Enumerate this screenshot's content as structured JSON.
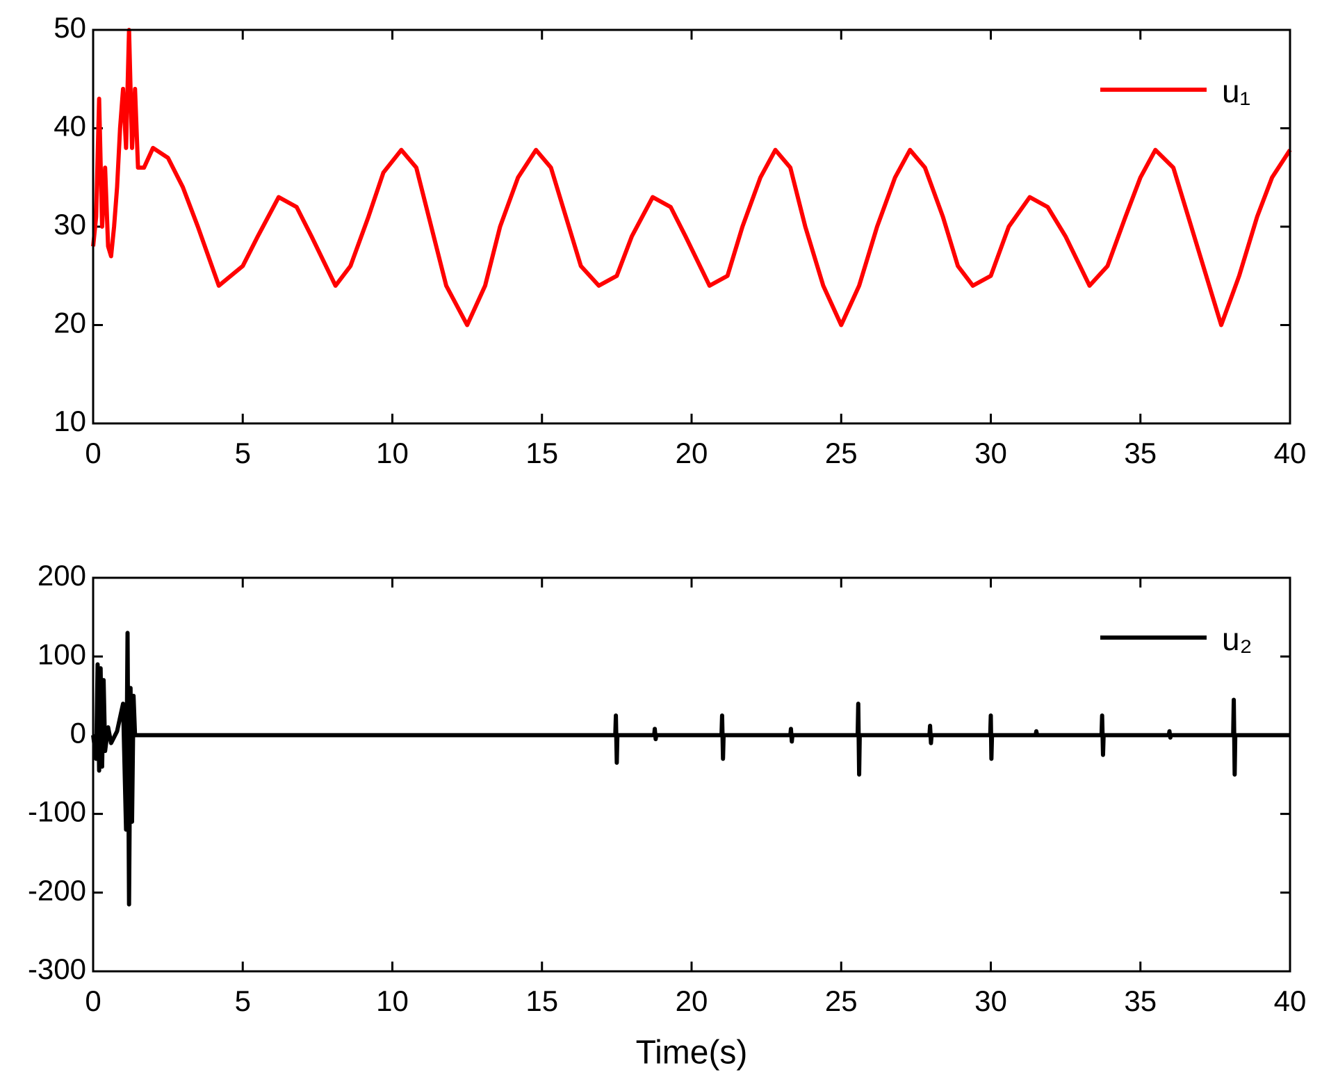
{
  "chart_data": [
    {
      "type": "line",
      "x": [
        0,
        0.1,
        0.2,
        0.3,
        0.4,
        0.5,
        0.6,
        0.7,
        0.8,
        0.9,
        1.0,
        1.1,
        1.2,
        1.3,
        1.4,
        1.5,
        1.7,
        2.0,
        2.5,
        3.0,
        3.5,
        4.2,
        5.0,
        5.5,
        6.2,
        6.8,
        7.3,
        8.1,
        8.6,
        9.2,
        9.7,
        10.3,
        10.8,
        11.3,
        11.8,
        12.5,
        13.1,
        13.6,
        14.2,
        14.8,
        15.3,
        15.8,
        16.3,
        16.9,
        17.5,
        18.0,
        18.7,
        19.3,
        19.8,
        20.6,
        21.2,
        21.7,
        22.3,
        22.8,
        23.3,
        23.8,
        24.4,
        25.0,
        25.6,
        26.2,
        26.8,
        27.3,
        27.8,
        28.4,
        28.9,
        29.4,
        30.0,
        30.6,
        31.3,
        31.9,
        32.5,
        33.3,
        33.9,
        34.5,
        35.0,
        35.5,
        36.1,
        36.6,
        37.1,
        37.7,
        38.3,
        38.9,
        39.4,
        40
      ],
      "series": [
        {
          "name": "u₁",
          "color": "#ff0000",
          "values": [
            28,
            31,
            43,
            30,
            36,
            28,
            27,
            30,
            34,
            40,
            44,
            38,
            50,
            38,
            44,
            36,
            36,
            38,
            37,
            34,
            30,
            24,
            26,
            29,
            33,
            32,
            29,
            24,
            26,
            31,
            35.5,
            37.8,
            36,
            30,
            24,
            20,
            24,
            30,
            35,
            37.8,
            36,
            31,
            26,
            24,
            25,
            29,
            33,
            32,
            29,
            24,
            25,
            30,
            35,
            37.8,
            36,
            30,
            24,
            20,
            24,
            30,
            35,
            37.8,
            36,
            31,
            26,
            24,
            25,
            30,
            33,
            32,
            29,
            24,
            26,
            31,
            35,
            37.8,
            36,
            31,
            26,
            20,
            25,
            31,
            35,
            37.8
          ]
        }
      ],
      "xlim": [
        0,
        40
      ],
      "xticks": [
        0,
        5,
        10,
        15,
        20,
        25,
        30,
        35,
        40
      ],
      "ylim": [
        10,
        50
      ],
      "yticks": [
        10,
        20,
        30,
        40,
        50
      ],
      "legend": "upper right"
    },
    {
      "type": "line",
      "x_label": "Time(s)",
      "x": [
        0,
        0.1,
        0.15,
        0.2,
        0.25,
        0.3,
        0.35,
        0.4,
        0.5,
        0.6,
        0.8,
        1.0,
        1.1,
        1.15,
        1.2,
        1.25,
        1.3,
        1.35,
        1.4,
        4,
        17.45,
        17.47,
        17.5,
        17.52,
        18.75,
        18.77,
        18.8,
        18.82,
        21,
        21.02,
        21.05,
        21.07,
        23.3,
        23.32,
        23.35,
        23.37,
        25.55,
        25.57,
        25.6,
        25.62,
        27.95,
        27.97,
        28,
        28.02,
        29.98,
        30,
        30.02,
        30.04,
        31.5,
        31.52,
        31.55,
        33.7,
        33.72,
        33.75,
        33.77,
        35.95,
        35.97,
        36,
        36.02,
        38.1,
        38.12,
        38.15,
        38.17,
        40
      ],
      "series": [
        {
          "name": "u₂",
          "color": "#000000",
          "values": [
            0,
            -30,
            90,
            -45,
            85,
            -40,
            70,
            -20,
            10,
            -10,
            5,
            40,
            -120,
            130,
            -215,
            60,
            -110,
            50,
            0,
            0,
            0,
            25,
            -35,
            0,
            0,
            8,
            -5,
            0,
            0,
            25,
            -30,
            0,
            0,
            8,
            -8,
            0,
            0,
            40,
            -50,
            0,
            0,
            12,
            -10,
            0,
            0,
            25,
            -30,
            0,
            0,
            5,
            0,
            0,
            25,
            -25,
            0,
            0,
            5,
            -3,
            0,
            0,
            45,
            -50,
            0,
            0
          ]
        }
      ],
      "xlim": [
        0,
        40
      ],
      "xticks": [
        0,
        5,
        10,
        15,
        20,
        25,
        30,
        35,
        40
      ],
      "ylim": [
        -300,
        200
      ],
      "yticks": [
        -300,
        -200,
        -100,
        0,
        100,
        200
      ],
      "legend": "upper right"
    }
  ]
}
